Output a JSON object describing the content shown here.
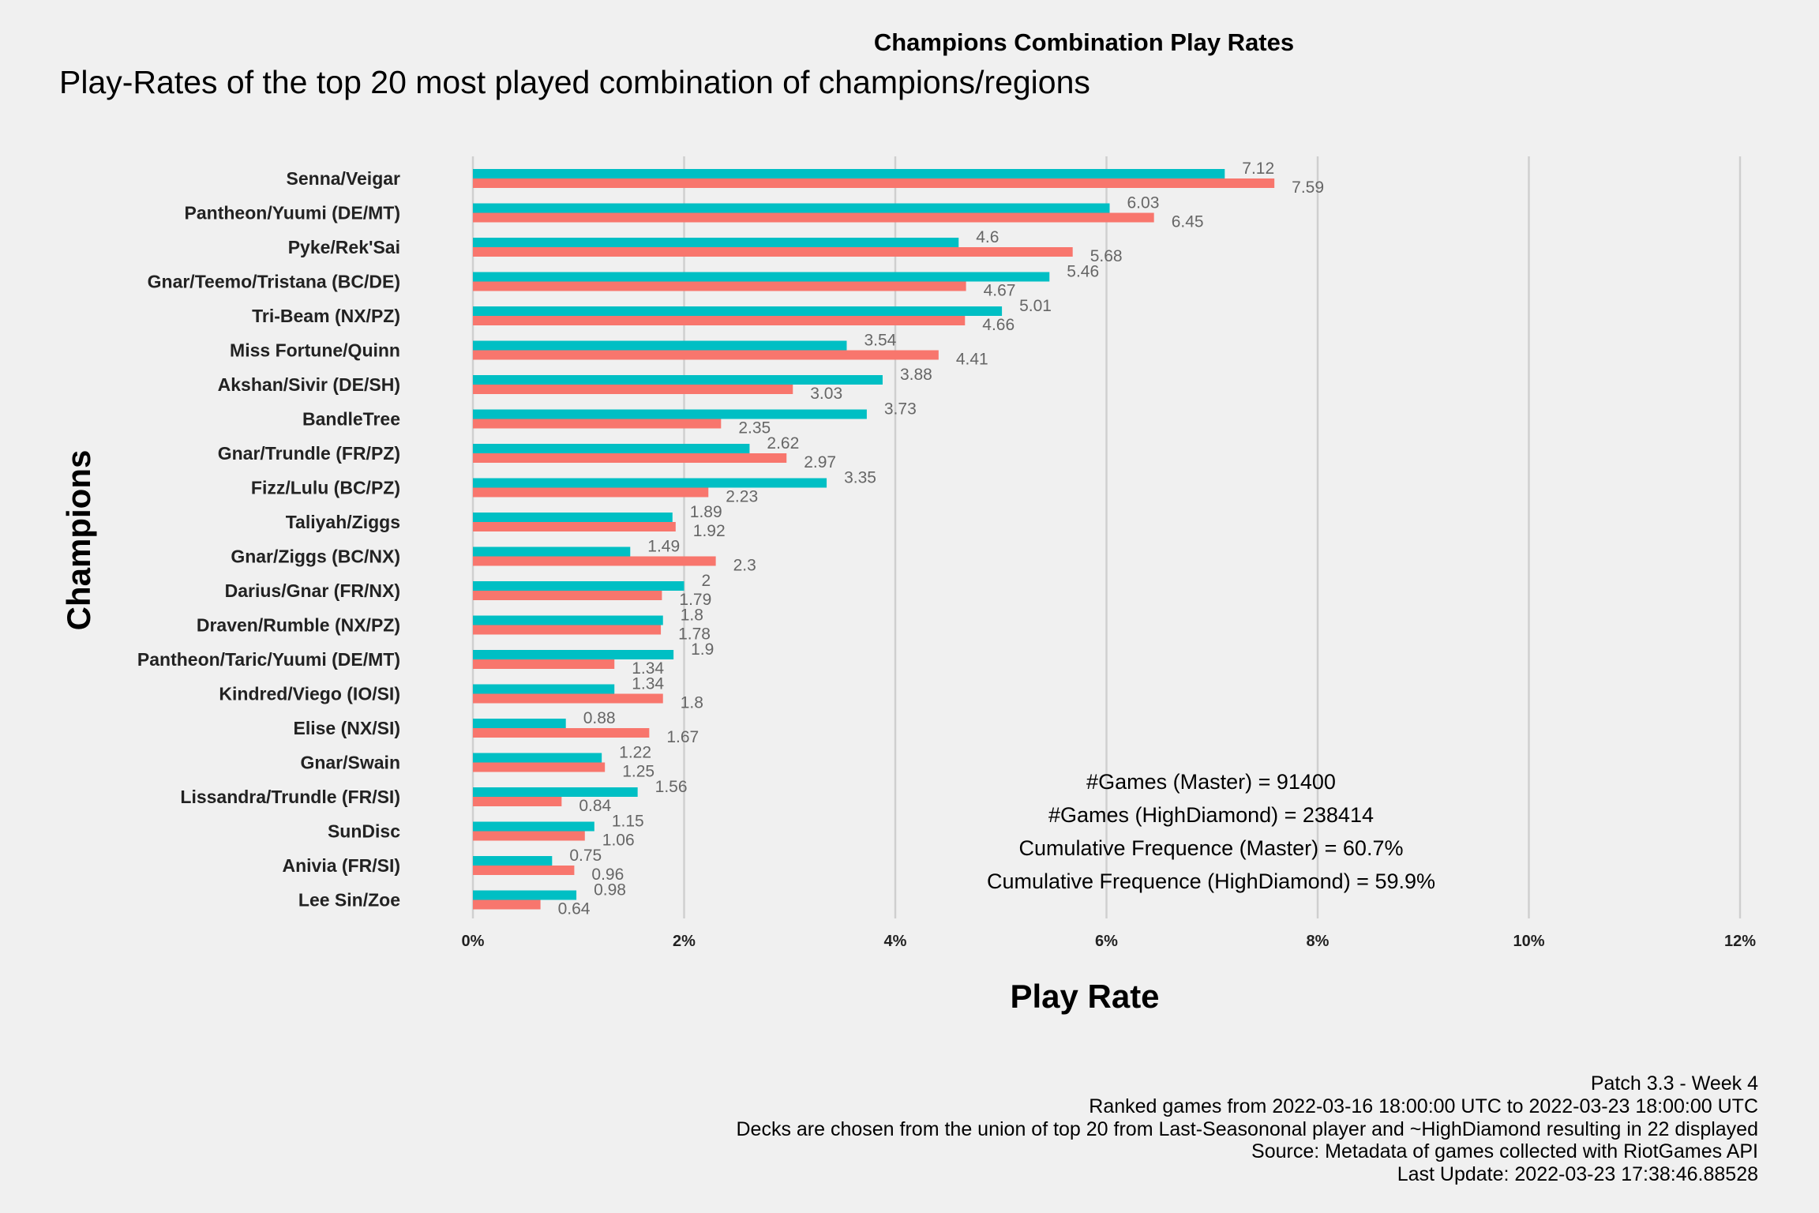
{
  "chart_data": {
    "type": "bar",
    "orientation": "horizontal",
    "title": "Champions Combination Play Rates",
    "subtitle": "Play-Rates of the top 20 most played combination of champions/regions",
    "xlabel": "Play Rate",
    "ylabel": "Champions",
    "xlim": [
      0,
      12
    ],
    "x_ticks": [
      "0%",
      "2%",
      "4%",
      "6%",
      "8%",
      "10%",
      "12%"
    ],
    "grid": true,
    "legend": "none",
    "categories": [
      "Senna/Veigar",
      "Pantheon/Yuumi (DE/MT)",
      "Pyke/Rek'Sai",
      "Gnar/Teemo/Tristana (BC/DE)",
      "Tri-Beam (NX/PZ)",
      "Miss Fortune/Quinn",
      "Akshan/Sivir (DE/SH)",
      "BandleTree",
      "Gnar/Trundle (FR/PZ)",
      "Fizz/Lulu (BC/PZ)",
      "Taliyah/Ziggs",
      "Gnar/Ziggs (BC/NX)",
      "Darius/Gnar (FR/NX)",
      "Draven/Rumble (NX/PZ)",
      "Pantheon/Taric/Yuumi (DE/MT)",
      "Kindred/Viego (IO/SI)",
      "Elise (NX/SI)",
      "Gnar/Swain",
      "Lissandra/Trundle (FR/SI)",
      "SunDisc",
      "Anivia (FR/SI)",
      "Lee Sin/Zoe"
    ],
    "series": [
      {
        "color": "#00bfc4",
        "values": [
          7.12,
          6.03,
          4.6,
          5.46,
          5.01,
          3.54,
          3.88,
          3.73,
          2.62,
          3.35,
          1.89,
          1.49,
          2,
          1.8,
          1.9,
          1.34,
          0.88,
          1.22,
          1.56,
          1.15,
          0.75,
          0.98
        ],
        "labels": [
          "7.12",
          "6.03",
          "4.6",
          "5.46",
          "5.01",
          "3.54",
          "3.88",
          "3.73",
          "2.62",
          "3.35",
          "1.89",
          "1.49",
          "2",
          "1.8",
          "1.9",
          "1.34",
          "0.88",
          "1.22",
          "1.56",
          "1.15",
          "0.75",
          "0.98"
        ]
      },
      {
        "color": "#f8766d",
        "values": [
          7.59,
          6.45,
          5.68,
          4.67,
          4.66,
          4.41,
          3.03,
          2.35,
          2.97,
          2.23,
          1.92,
          2.3,
          1.79,
          1.78,
          1.34,
          1.8,
          1.67,
          1.25,
          0.84,
          1.06,
          0.96,
          0.64
        ],
        "labels": [
          "7.59",
          "6.45",
          "5.68",
          "4.67",
          "4.66",
          "4.41",
          "3.03",
          "2.35",
          "2.97",
          "2.23",
          "1.92",
          "2.3",
          "1.79",
          "1.78",
          "1.34",
          "1.8",
          "1.67",
          "1.25",
          "0.84",
          "1.06",
          "0.96",
          "0.64"
        ]
      }
    ],
    "annotations": [
      "#Games (Master) = 91400",
      "#Games (HighDiamond) = 238414",
      "Cumulative Frequence (Master) = 60.7%",
      "Cumulative Frequence (HighDiamond) = 59.9%"
    ],
    "caption": [
      "Patch 3.3 - Week 4",
      "Ranked games from 2022-03-16 18:00:00 UTC to 2022-03-23 18:00:00 UTC",
      "Decks are chosen from the union of top 20 from Last-Seasononal player and ~HighDiamond resulting in 22 displayed",
      "Source: Metadata of games collected with RiotGames API",
      "Last Update: 2022-03-23 17:38:46.88528"
    ]
  }
}
